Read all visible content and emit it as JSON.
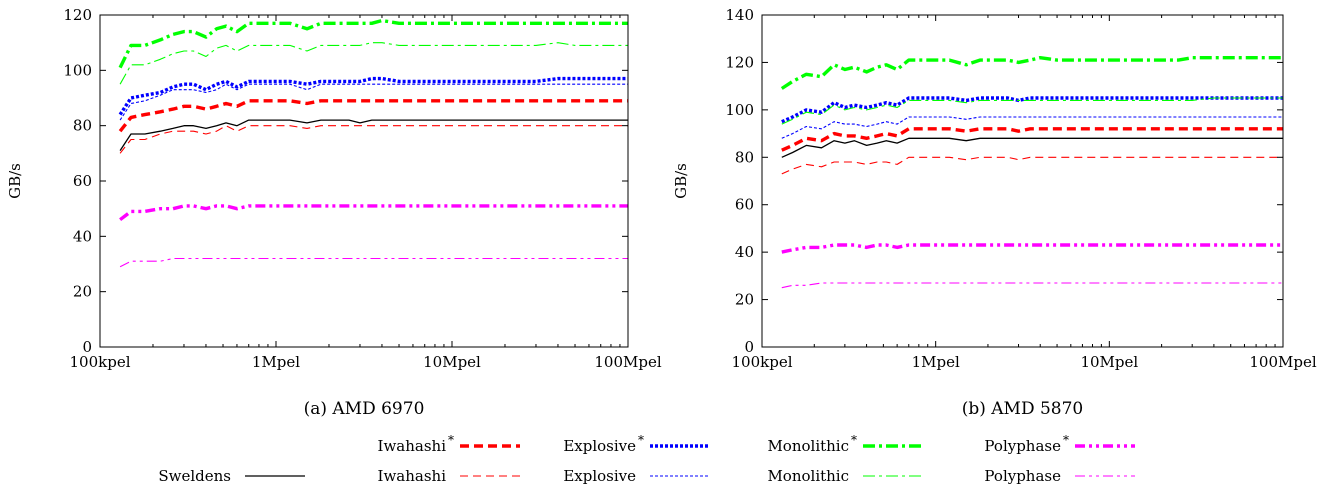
{
  "legend": {
    "placement": "bottom",
    "rows": [
      [
        {
          "series": "Iwahashi*"
        },
        {
          "series": "Explosive*"
        },
        {
          "series": "Monolithic*"
        },
        {
          "series": "Polyphase*"
        }
      ],
      [
        {
          "series": "Sweldens"
        },
        {
          "series": "Iwahashi"
        },
        {
          "series": "Explosive"
        },
        {
          "series": "Monolithic"
        },
        {
          "series": "Polyphase"
        }
      ]
    ]
  },
  "styles": {
    "Sweldens": {
      "label": "Sweldens",
      "star": false,
      "color": "#000000",
      "width": 1.3,
      "dash": ""
    },
    "Iwahashi*": {
      "label": "Iwahashi",
      "star": true,
      "color": "#ff0000",
      "width": 3.4,
      "dash": "9,5"
    },
    "Iwahashi": {
      "label": "Iwahashi",
      "star": false,
      "color": "#ff0000",
      "width": 1.1,
      "dash": "8,5"
    },
    "Explosive*": {
      "label": "Explosive",
      "star": true,
      "color": "#0000ff",
      "width": 3.4,
      "dash": "3,2"
    },
    "Explosive": {
      "label": "Explosive",
      "star": false,
      "color": "#0000ff",
      "width": 1.1,
      "dash": "3,2"
    },
    "Monolithic*": {
      "label": "Monolithic",
      "star": true,
      "color": "#00ff00",
      "width": 3.4,
      "dash": "12,4,3,4"
    },
    "Monolithic": {
      "label": "Monolithic",
      "star": false,
      "color": "#00ff00",
      "width": 1.1,
      "dash": "12,4,3,4"
    },
    "Polyphase*": {
      "label": "Polyphase",
      "star": true,
      "color": "#ff00ff",
      "width": 3.4,
      "dash": "10,4,3,4,3,4"
    },
    "Polyphase": {
      "label": "Polyphase",
      "star": false,
      "color": "#ff00ff",
      "width": 1.1,
      "dash": "10,4,3,4,3,4"
    }
  },
  "chart_data": [
    {
      "type": "line",
      "caption": "(a) AMD 6970",
      "ylabel": "GB/s",
      "xscale": "log",
      "xlim": [
        100000,
        100000000
      ],
      "ylim": [
        0,
        120
      ],
      "yticks": [
        0,
        20,
        40,
        60,
        80,
        100,
        120
      ],
      "xticks": [
        {
          "value": 100000,
          "label": "100kpel"
        },
        {
          "value": 1000000,
          "label": "1Mpel"
        },
        {
          "value": 10000000,
          "label": "10Mpel"
        },
        {
          "value": 100000000,
          "label": "100Mpel"
        }
      ],
      "grid": false,
      "x": [
        130000,
        150000,
        180000,
        220000,
        260000,
        300000,
        340000,
        400000,
        460000,
        520000,
        600000,
        700000,
        850000,
        1000000,
        1200000,
        1500000,
        1800000,
        2200000,
        2600000,
        3000000,
        3500000,
        4000000,
        5000000,
        6000000,
        8000000,
        10000000,
        13000000,
        16000000,
        20000000,
        25000000,
        30000000,
        40000000,
        50000000,
        60000000,
        80000000,
        100000000
      ],
      "series": [
        {
          "name": "Monolithic*",
          "values": [
            101,
            109,
            109,
            111,
            113,
            114,
            114,
            112,
            115,
            116,
            114,
            117,
            117,
            117,
            117,
            115,
            117,
            117,
            117,
            117,
            117,
            118,
            117,
            117,
            117,
            117,
            117,
            117,
            117,
            117,
            117,
            117,
            117,
            117,
            117,
            117
          ]
        },
        {
          "name": "Monolithic",
          "values": [
            95,
            102,
            102,
            104,
            106,
            107,
            107,
            105,
            108,
            109,
            107,
            109,
            109,
            109,
            109,
            107,
            109,
            109,
            109,
            109,
            110,
            110,
            109,
            109,
            109,
            109,
            109,
            109,
            109,
            109,
            109,
            110,
            109,
            109,
            109,
            109
          ]
        },
        {
          "name": "Explosive*",
          "values": [
            84,
            90,
            91,
            92,
            94,
            95,
            95,
            93,
            95,
            96,
            94,
            96,
            96,
            96,
            96,
            95,
            96,
            96,
            96,
            96,
            97,
            97,
            96,
            96,
            96,
            96,
            96,
            96,
            96,
            96,
            96,
            97,
            97,
            97,
            97,
            97
          ]
        },
        {
          "name": "Explosive",
          "values": [
            82,
            88,
            89,
            91,
            93,
            93,
            93,
            92,
            93,
            95,
            93,
            95,
            95,
            95,
            95,
            93,
            95,
            95,
            95,
            95,
            95,
            95,
            95,
            95,
            95,
            95,
            95,
            95,
            95,
            95,
            95,
            95,
            95,
            95,
            95,
            95
          ]
        },
        {
          "name": "Iwahashi*",
          "values": [
            78,
            83,
            84,
            85,
            86,
            87,
            87,
            86,
            87,
            88,
            87,
            89,
            89,
            89,
            89,
            88,
            89,
            89,
            89,
            89,
            89,
            89,
            89,
            89,
            89,
            89,
            89,
            89,
            89,
            89,
            89,
            89,
            89,
            89,
            89,
            89
          ]
        },
        {
          "name": "Sweldens",
          "values": [
            71,
            77,
            77,
            78,
            79,
            80,
            80,
            79,
            80,
            81,
            80,
            82,
            82,
            82,
            82,
            81,
            82,
            82,
            82,
            81,
            82,
            82,
            82,
            82,
            82,
            82,
            82,
            82,
            82,
            82,
            82,
            82,
            82,
            82,
            82,
            82
          ]
        },
        {
          "name": "Iwahashi",
          "values": [
            70,
            75,
            75,
            77,
            78,
            78,
            78,
            77,
            78,
            80,
            78,
            80,
            80,
            80,
            80,
            79,
            80,
            80,
            80,
            80,
            80,
            80,
            80,
            80,
            80,
            80,
            80,
            80,
            80,
            80,
            80,
            80,
            80,
            80,
            80,
            80
          ]
        },
        {
          "name": "Polyphase*",
          "values": [
            46,
            49,
            49,
            50,
            50,
            51,
            51,
            50,
            51,
            51,
            50,
            51,
            51,
            51,
            51,
            51,
            51,
            51,
            51,
            51,
            51,
            51,
            51,
            51,
            51,
            51,
            51,
            51,
            51,
            51,
            51,
            51,
            51,
            51,
            51,
            51
          ]
        },
        {
          "name": "Polyphase",
          "values": [
            29,
            31,
            31,
            31,
            32,
            32,
            32,
            32,
            32,
            32,
            32,
            32,
            32,
            32,
            32,
            32,
            32,
            32,
            32,
            32,
            32,
            32,
            32,
            32,
            32,
            32,
            32,
            32,
            32,
            32,
            32,
            32,
            32,
            32,
            32,
            32
          ]
        }
      ]
    },
    {
      "type": "line",
      "caption": "(b) AMD 5870",
      "ylabel": "GB/s",
      "xscale": "log",
      "xlim": [
        100000,
        100000000
      ],
      "ylim": [
        0,
        140
      ],
      "yticks": [
        0,
        20,
        40,
        60,
        80,
        100,
        120,
        140
      ],
      "xticks": [
        {
          "value": 100000,
          "label": "100kpel"
        },
        {
          "value": 1000000,
          "label": "1Mpel"
        },
        {
          "value": 10000000,
          "label": "10Mpel"
        },
        {
          "value": 100000000,
          "label": "100Mpel"
        }
      ],
      "grid": false,
      "x": [
        130000,
        150000,
        180000,
        220000,
        260000,
        300000,
        340000,
        400000,
        460000,
        520000,
        600000,
        700000,
        850000,
        1000000,
        1200000,
        1500000,
        1800000,
        2200000,
        2600000,
        3000000,
        3500000,
        4000000,
        5000000,
        6000000,
        8000000,
        10000000,
        13000000,
        16000000,
        20000000,
        25000000,
        30000000,
        40000000,
        50000000,
        60000000,
        80000000,
        100000000
      ],
      "series": [
        {
          "name": "Monolithic*",
          "values": [
            109,
            112,
            115,
            114,
            119,
            117,
            118,
            116,
            118,
            119,
            117,
            121,
            121,
            121,
            121,
            119,
            121,
            121,
            121,
            120,
            121,
            122,
            121,
            121,
            121,
            121,
            121,
            121,
            121,
            121,
            122,
            122,
            122,
            122,
            122,
            122
          ]
        },
        {
          "name": "Explosive*",
          "values": [
            95,
            97,
            100,
            99,
            103,
            101,
            102,
            101,
            102,
            103,
            102,
            105,
            105,
            105,
            105,
            104,
            105,
            105,
            105,
            104,
            105,
            105,
            105,
            105,
            105,
            105,
            105,
            105,
            105,
            105,
            105,
            105,
            105,
            105,
            105,
            105
          ]
        },
        {
          "name": "Monolithic",
          "values": [
            94,
            96,
            99,
            98,
            102,
            100,
            101,
            100,
            101,
            102,
            101,
            104,
            104,
            104,
            104,
            103,
            104,
            104,
            104,
            104,
            104,
            104,
            104,
            104,
            104,
            104,
            104,
            104,
            104,
            104,
            104,
            105,
            105,
            105,
            105,
            105
          ]
        },
        {
          "name": "Explosive",
          "values": [
            88,
            90,
            93,
            92,
            95,
            94,
            94,
            93,
            94,
            95,
            94,
            97,
            97,
            97,
            97,
            96,
            97,
            97,
            97,
            97,
            97,
            97,
            97,
            97,
            97,
            97,
            97,
            97,
            97,
            97,
            97,
            97,
            97,
            97,
            97,
            97
          ]
        },
        {
          "name": "Iwahashi*",
          "values": [
            83,
            85,
            88,
            87,
            90,
            89,
            89,
            88,
            89,
            90,
            89,
            92,
            92,
            92,
            92,
            91,
            92,
            92,
            92,
            91,
            92,
            92,
            92,
            92,
            92,
            92,
            92,
            92,
            92,
            92,
            92,
            92,
            92,
            92,
            92,
            92
          ]
        },
        {
          "name": "Sweldens",
          "values": [
            80,
            82,
            85,
            84,
            87,
            86,
            87,
            85,
            86,
            87,
            86,
            88,
            88,
            88,
            88,
            87,
            88,
            88,
            88,
            88,
            88,
            88,
            88,
            88,
            88,
            88,
            88,
            88,
            88,
            88,
            88,
            88,
            88,
            88,
            88,
            88
          ]
        },
        {
          "name": "Iwahashi",
          "values": [
            73,
            75,
            77,
            76,
            78,
            78,
            78,
            77,
            78,
            78,
            77,
            80,
            80,
            80,
            80,
            79,
            80,
            80,
            80,
            79,
            80,
            80,
            80,
            80,
            80,
            80,
            80,
            80,
            80,
            80,
            80,
            80,
            80,
            80,
            80,
            80
          ]
        },
        {
          "name": "Polyphase*",
          "values": [
            40,
            41,
            42,
            42,
            43,
            43,
            43,
            42,
            43,
            43,
            42,
            43,
            43,
            43,
            43,
            43,
            43,
            43,
            43,
            43,
            43,
            43,
            43,
            43,
            43,
            43,
            43,
            43,
            43,
            43,
            43,
            43,
            43,
            43,
            43,
            43
          ]
        },
        {
          "name": "Polyphase",
          "values": [
            25,
            26,
            26,
            27,
            27,
            27,
            27,
            27,
            27,
            27,
            27,
            27,
            27,
            27,
            27,
            27,
            27,
            27,
            27,
            27,
            27,
            27,
            27,
            27,
            27,
            27,
            27,
            27,
            27,
            27,
            27,
            27,
            27,
            27,
            27,
            27
          ]
        }
      ]
    }
  ]
}
